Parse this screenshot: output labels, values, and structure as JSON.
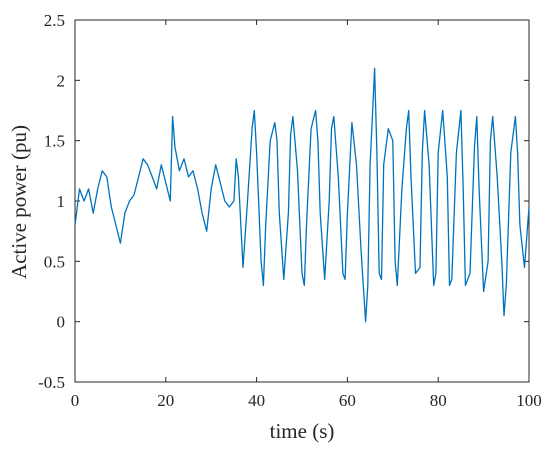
{
  "chart_data": {
    "type": "line",
    "title": "",
    "xlabel": "time (s)",
    "ylabel": "Active power (pu)",
    "xlim": [
      0,
      100
    ],
    "ylim": [
      -0.5,
      2.5
    ],
    "x_ticks": [
      "0",
      "20",
      "40",
      "60",
      "80",
      "100"
    ],
    "y_ticks": [
      "-0.5",
      "0",
      "0.5",
      "1",
      "1.5",
      "2",
      "2.5"
    ],
    "grid": false,
    "legend": "none",
    "line_color": "#0072BD",
    "series": [
      {
        "x": [
          0,
          1,
          2,
          3,
          4,
          5,
          6,
          7,
          8,
          9,
          10,
          11,
          12,
          13,
          14,
          15,
          16,
          17,
          18,
          19,
          20,
          21,
          21.5,
          22,
          23,
          24,
          25,
          26,
          27,
          28,
          29,
          30,
          31,
          32,
          33,
          34,
          35,
          35.5,
          36,
          37,
          38,
          39,
          39.5,
          40,
          41,
          41.5,
          42,
          43,
          44,
          44.5,
          45,
          46,
          47,
          47.5,
          48,
          49,
          50,
          50.5,
          51,
          52,
          53,
          53.5,
          54,
          55,
          56,
          56.5,
          57,
          58,
          59,
          59.5,
          60,
          61,
          62,
          63,
          64,
          64.5,
          65,
          65.5,
          66,
          66.5,
          67,
          67.5,
          68,
          69,
          70,
          70.5,
          71,
          72,
          73,
          73.5,
          74,
          75,
          76,
          76.5,
          77,
          78,
          79,
          79.5,
          80,
          81,
          82,
          82.5,
          83,
          84,
          85,
          85.5,
          86,
          87,
          88,
          88.5,
          89,
          90,
          91,
          91.5,
          92,
          93,
          94,
          94.5,
          95,
          96,
          97,
          97.5,
          98,
          99,
          100
        ],
        "y": [
          0.8,
          1.1,
          1.0,
          1.1,
          0.9,
          1.1,
          1.25,
          1.2,
          0.95,
          0.8,
          0.65,
          0.9,
          1.0,
          1.05,
          1.2,
          1.35,
          1.3,
          1.2,
          1.1,
          1.3,
          1.15,
          1.0,
          1.7,
          1.45,
          1.25,
          1.35,
          1.2,
          1.25,
          1.1,
          0.9,
          0.75,
          1.1,
          1.3,
          1.15,
          1.0,
          0.95,
          1.0,
          1.35,
          1.2,
          0.45,
          1.0,
          1.6,
          1.75,
          1.4,
          0.5,
          0.3,
          0.8,
          1.5,
          1.65,
          1.5,
          0.9,
          0.35,
          0.9,
          1.55,
          1.7,
          1.25,
          0.4,
          0.3,
          0.8,
          1.6,
          1.75,
          1.5,
          0.9,
          0.35,
          1.0,
          1.6,
          1.7,
          1.2,
          0.4,
          0.35,
          0.9,
          1.65,
          1.3,
          0.6,
          0.0,
          0.3,
          1.3,
          1.7,
          2.1,
          1.4,
          0.4,
          0.35,
          1.3,
          1.6,
          1.5,
          0.5,
          0.3,
          1.1,
          1.6,
          1.75,
          1.2,
          0.4,
          0.45,
          1.4,
          1.75,
          1.3,
          0.3,
          0.4,
          1.4,
          1.75,
          1.2,
          0.3,
          0.35,
          1.4,
          1.75,
          1.1,
          0.3,
          0.4,
          1.45,
          1.7,
          1.1,
          0.25,
          0.5,
          1.5,
          1.7,
          1.2,
          0.5,
          0.05,
          0.3,
          1.4,
          1.7,
          1.4,
          0.8,
          0.45,
          0.95
        ]
      }
    ]
  }
}
